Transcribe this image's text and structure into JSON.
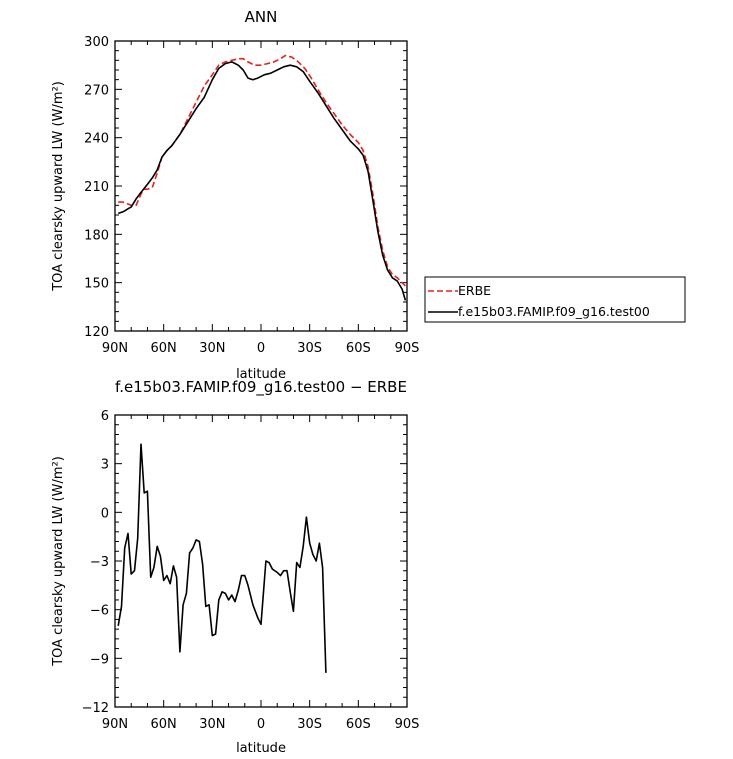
{
  "chart_data": [
    {
      "type": "line",
      "title": "ANN",
      "xlabel": "latitude",
      "ylabel": "TOA clearsky upward LW (W/m²)",
      "xlim": [
        90,
        -90
      ],
      "ylim": [
        120,
        300
      ],
      "xticks": [
        90,
        60,
        30,
        0,
        -30,
        -60,
        -90
      ],
      "xticklabels": [
        "90N",
        "60N",
        "30N",
        "0",
        "30S",
        "60S",
        "90S"
      ],
      "yticks": [
        120,
        150,
        180,
        210,
        240,
        270,
        300
      ],
      "legend_position": "right",
      "series": [
        {
          "name": "ERBE",
          "color": "#e8211d",
          "dash": "dashed",
          "points": [
            [
              88,
              200
            ],
            [
              85,
              200
            ],
            [
              80,
              198
            ],
            [
              77,
              198
            ],
            [
              74,
              205
            ],
            [
              72,
              208
            ],
            [
              70,
              208
            ],
            [
              67,
              209
            ],
            [
              64,
              218
            ],
            [
              61,
              228
            ],
            [
              58,
              232
            ],
            [
              55,
              235
            ],
            [
              50,
              242
            ],
            [
              45,
              252
            ],
            [
              40,
              262
            ],
            [
              35,
              272
            ],
            [
              30,
              279
            ],
            [
              26,
              285
            ],
            [
              22,
              287
            ],
            [
              18,
              288
            ],
            [
              14,
              289
            ],
            [
              11,
              289
            ],
            [
              8,
              287
            ],
            [
              4,
              285
            ],
            [
              0,
              285
            ],
            [
              -4,
              286
            ],
            [
              -8,
              287
            ],
            [
              -12,
              289
            ],
            [
              -15,
              291
            ],
            [
              -19,
              290
            ],
            [
              -23,
              287
            ],
            [
              -27,
              283
            ],
            [
              -31,
              277
            ],
            [
              -35,
              270
            ],
            [
              -40,
              262
            ],
            [
              -45,
              255
            ],
            [
              -50,
              248
            ],
            [
              -55,
              242
            ],
            [
              -60,
              237
            ],
            [
              -63,
              232
            ],
            [
              -66,
              222
            ],
            [
              -69,
              205
            ],
            [
              -72,
              185
            ],
            [
              -75,
              170
            ],
            [
              -78,
              160
            ],
            [
              -81,
              155
            ],
            [
              -84,
              153
            ],
            [
              -87,
              150
            ],
            [
              -89,
              148
            ]
          ]
        },
        {
          "name": "f.e15b03.FAMIP.f09_g16.test00",
          "color": "#000000",
          "dash": "solid",
          "points": [
            [
              88,
              193
            ],
            [
              85,
              194
            ],
            [
              80,
              197
            ],
            [
              77,
              202
            ],
            [
              74,
              206
            ],
            [
              70,
              211
            ],
            [
              67,
              215
            ],
            [
              64,
              220
            ],
            [
              61,
              228
            ],
            [
              58,
              232
            ],
            [
              55,
              235
            ],
            [
              50,
              242
            ],
            [
              45,
              250
            ],
            [
              40,
              258
            ],
            [
              35,
              265
            ],
            [
              30,
              276
            ],
            [
              26,
              283
            ],
            [
              22,
              286
            ],
            [
              18,
              287
            ],
            [
              14,
              285
            ],
            [
              11,
              282
            ],
            [
              8,
              277
            ],
            [
              5,
              276
            ],
            [
              2,
              277
            ],
            [
              -2,
              279
            ],
            [
              -6,
              280
            ],
            [
              -10,
              282
            ],
            [
              -14,
              284
            ],
            [
              -18,
              285
            ],
            [
              -22,
              284
            ],
            [
              -26,
              281
            ],
            [
              -30,
              275
            ],
            [
              -35,
              268
            ],
            [
              -40,
              260
            ],
            [
              -45,
              252
            ],
            [
              -50,
              245
            ],
            [
              -55,
              238
            ],
            [
              -60,
              233
            ],
            [
              -63,
              229
            ],
            [
              -66,
              219
            ],
            [
              -69,
              201
            ],
            [
              -72,
              182
            ],
            [
              -75,
              167
            ],
            [
              -78,
              158
            ],
            [
              -81,
              153
            ],
            [
              -84,
              151
            ],
            [
              -87,
              146
            ],
            [
              -89,
              139
            ]
          ]
        }
      ]
    },
    {
      "type": "line",
      "title": "f.e15b03.FAMIP.f09_g16.test00 − ERBE",
      "xlabel": "latitude",
      "ylabel": "TOA clearsky upward LW (W/m²)",
      "xlim": [
        90,
        -90
      ],
      "ylim": [
        -12,
        6
      ],
      "xticks": [
        90,
        60,
        30,
        0,
        -30,
        -60,
        -90
      ],
      "xticklabels": [
        "90N",
        "60N",
        "30N",
        "0",
        "30S",
        "60S",
        "90S"
      ],
      "yticks": [
        -12,
        -9,
        -6,
        -3,
        0,
        3,
        6
      ],
      "series": [
        {
          "color": "#000000",
          "dash": "solid",
          "points": [
            [
              88,
              -7.0
            ],
            [
              86,
              -5.8
            ],
            [
              84,
              -2.2
            ],
            [
              82,
              -1.3
            ],
            [
              80,
              -3.8
            ],
            [
              78,
              -3.6
            ],
            [
              76,
              -1.6
            ],
            [
              74,
              4.2
            ],
            [
              72,
              1.2
            ],
            [
              70,
              1.3
            ],
            [
              68,
              -4.0
            ],
            [
              66,
              -3.4
            ],
            [
              64,
              -2.1
            ],
            [
              62,
              -2.7
            ],
            [
              60,
              -4.2
            ],
            [
              58,
              -3.9
            ],
            [
              56,
              -4.4
            ],
            [
              54,
              -3.3
            ],
            [
              52,
              -4.0
            ],
            [
              50,
              -8.6
            ],
            [
              48,
              -5.7
            ],
            [
              46,
              -5.0
            ],
            [
              44,
              -2.5
            ],
            [
              42,
              -2.2
            ],
            [
              40,
              -1.7
            ],
            [
              38,
              -1.8
            ],
            [
              36,
              -3.2
            ],
            [
              34,
              -5.8
            ],
            [
              32,
              -5.7
            ],
            [
              30,
              -7.6
            ],
            [
              28,
              -7.5
            ],
            [
              26,
              -5.4
            ],
            [
              24,
              -4.9
            ],
            [
              22,
              -5.0
            ],
            [
              20,
              -5.4
            ],
            [
              18,
              -5.1
            ],
            [
              16,
              -5.5
            ],
            [
              14,
              -4.8
            ],
            [
              12,
              -3.9
            ],
            [
              10,
              -3.9
            ],
            [
              8,
              -4.5
            ],
            [
              5,
              -5.7
            ],
            [
              2,
              -6.5
            ],
            [
              0,
              -6.9
            ],
            [
              -3,
              -3.0
            ],
            [
              -5,
              -3.1
            ],
            [
              -7,
              -3.5
            ],
            [
              -10,
              -3.7
            ],
            [
              -12,
              -3.9
            ],
            [
              -14,
              -3.6
            ],
            [
              -16,
              -3.6
            ],
            [
              -18,
              -4.9
            ],
            [
              -20,
              -6.1
            ],
            [
              -22,
              -3.1
            ],
            [
              -24,
              -3.4
            ],
            [
              -26,
              -2.1
            ],
            [
              -28,
              -0.3
            ],
            [
              -30,
              -1.9
            ],
            [
              -32,
              -2.6
            ],
            [
              -34,
              -3.0
            ],
            [
              -36,
              -1.9
            ],
            [
              -38,
              -3.4
            ],
            [
              -40,
              -9.9
            ]
          ]
        }
      ]
    }
  ],
  "legend": {
    "items": [
      {
        "label": "ERBE",
        "color": "#e8211d",
        "dash": "dashed"
      },
      {
        "label": "f.e15b03.FAMIP.f09_g16.test00",
        "color": "#000000",
        "dash": "solid"
      }
    ]
  }
}
